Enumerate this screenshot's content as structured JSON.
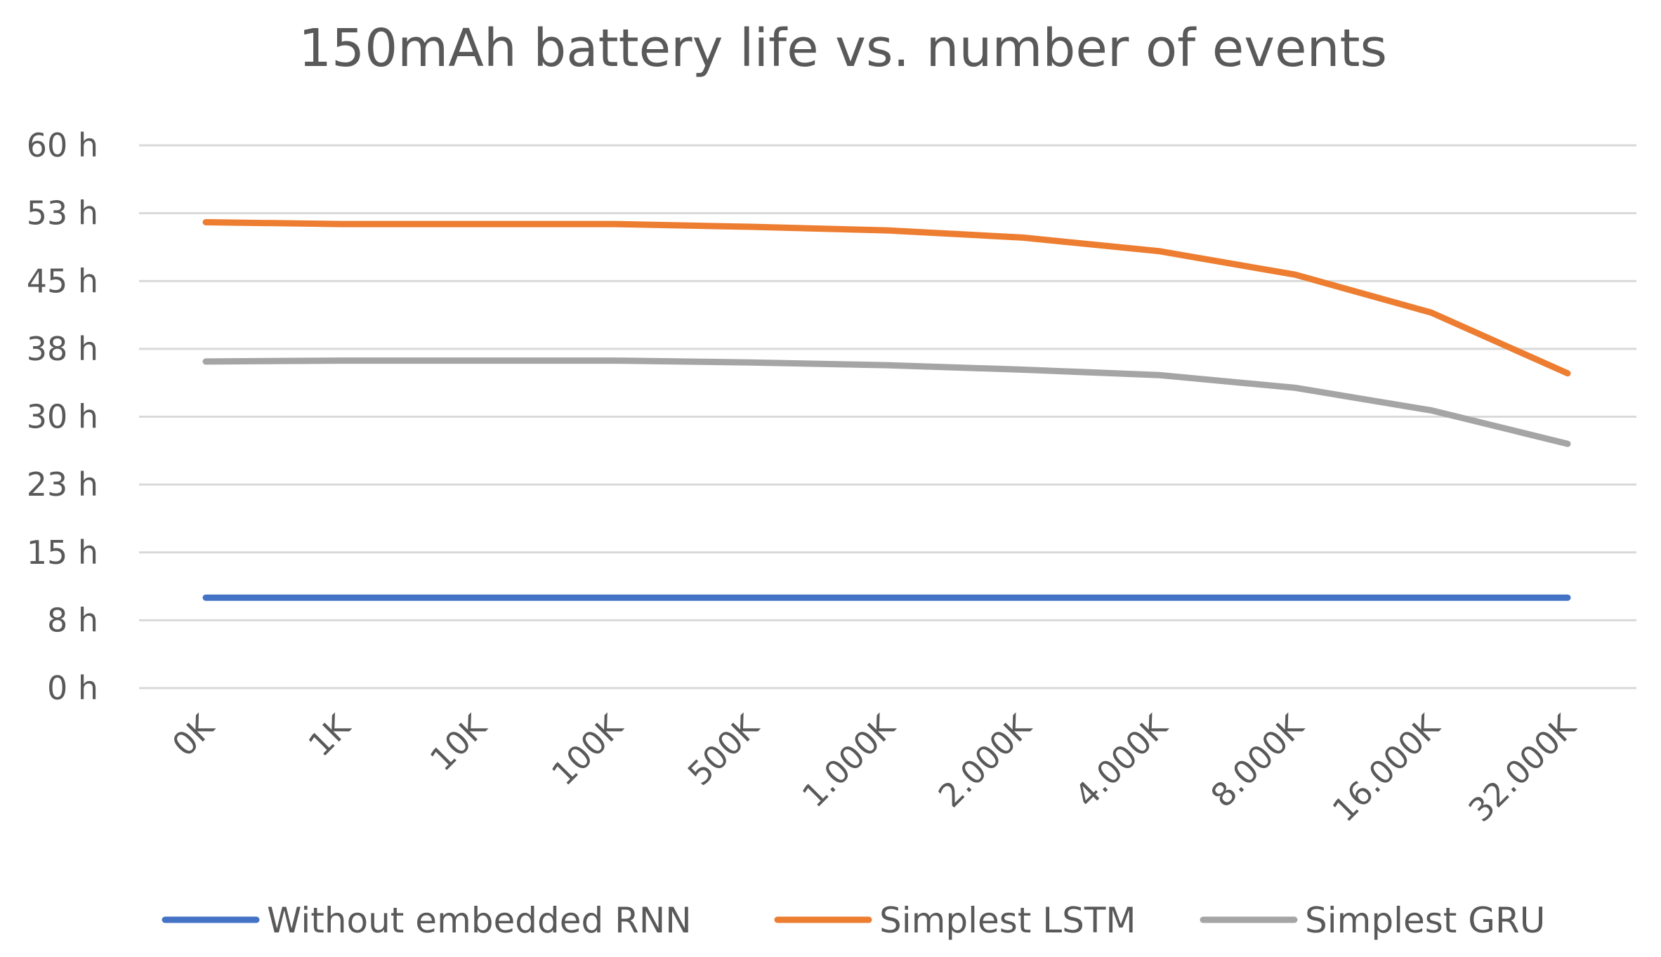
{
  "chart_data": {
    "type": "line",
    "title": "150mAh battery life vs. number of events",
    "xlabel": "",
    "ylabel": "",
    "categories": [
      "0K",
      "1K",
      "10K",
      "100K",
      "500K",
      "1.000K",
      "2.000K",
      "4.000K",
      "8.000K",
      "16.000K",
      "32.000K"
    ],
    "ylim": [
      0,
      60
    ],
    "yticks": [
      0,
      7.5,
      15,
      22.5,
      30,
      37.5,
      45,
      52.5,
      60
    ],
    "ytick_labels": [
      "0 h",
      "8 h",
      "15 h",
      "23 h",
      "30 h",
      "38 h",
      "45 h",
      "53 h",
      "60 h"
    ],
    "grid": true,
    "legend_position": "bottom",
    "series": [
      {
        "name": "Without embedded  RNN",
        "color": "#4472c4",
        "values": [
          10,
          10,
          10,
          10,
          10,
          10,
          10,
          10,
          10,
          10,
          10
        ]
      },
      {
        "name": "Simplest LSTM",
        "color": "#ed7d31",
        "values": [
          51.5,
          51.3,
          51.3,
          51.3,
          51.0,
          50.6,
          49.8,
          48.3,
          45.7,
          41.5,
          34.8
        ]
      },
      {
        "name": "Simplest GRU",
        "color": "#a5a5a5",
        "values": [
          36.1,
          36.2,
          36.2,
          36.2,
          36.0,
          35.7,
          35.2,
          34.6,
          33.2,
          30.7,
          27.0
        ]
      }
    ]
  }
}
